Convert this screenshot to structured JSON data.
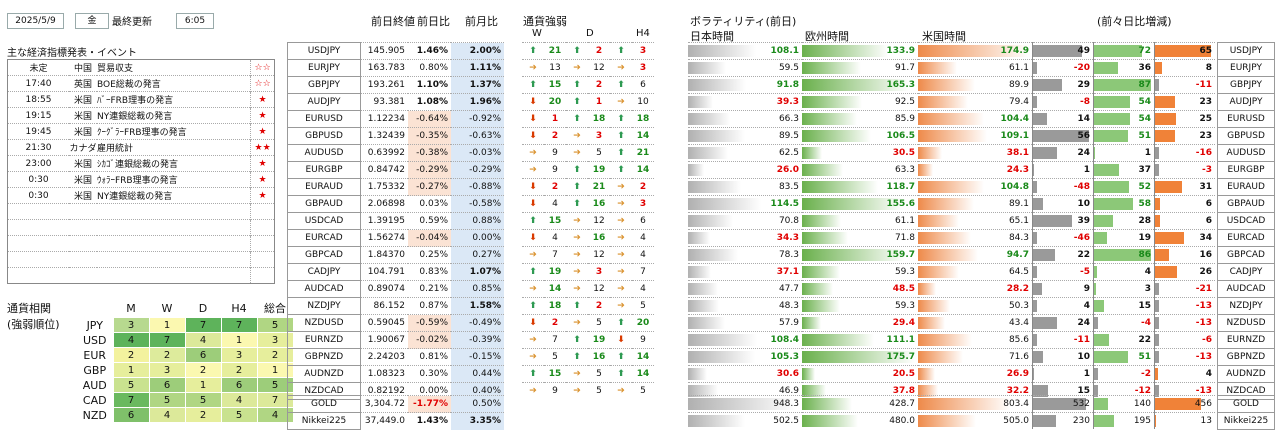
{
  "header": {
    "date": "2025/5/9",
    "weekday": "金",
    "updated_label": "最終更新",
    "time": "6:05"
  },
  "events_title": "主な経済指標発表・イベント",
  "events": [
    {
      "time": "未定",
      "country": "中国",
      "event": "貿易収支",
      "stars": "☆☆"
    },
    {
      "time": "17:40",
      "country": "英国",
      "event": "BOE総裁の発言",
      "stars": "☆☆"
    },
    {
      "time": "18:55",
      "country": "米国",
      "event": "ﾊﾞｰFRB理事の発言",
      "stars": "★"
    },
    {
      "time": "19:15",
      "country": "米国",
      "event": "NY連銀総裁の発言",
      "stars": "★"
    },
    {
      "time": "19:45",
      "country": "米国",
      "event": "ｸｰｸﾞﾗｰFRB理事の発言",
      "stars": "★"
    },
    {
      "time": "21:30",
      "country": "カナダ",
      "event": "雇用統計",
      "stars": "★★"
    },
    {
      "time": "23:00",
      "country": "米国",
      "event": "ｼｶｺﾞ連銀総裁の発言",
      "stars": "★"
    },
    {
      "time": "0:30",
      "country": "米国",
      "event": "ｳｫﾗｰFRB理事の発言",
      "stars": "★"
    },
    {
      "time": "0:30",
      "country": "米国",
      "event": "NY連銀総裁の発言",
      "stars": "★"
    },
    {
      "time": "",
      "country": "",
      "event": "",
      "stars": ""
    },
    {
      "time": "",
      "country": "",
      "event": "",
      "stars": ""
    },
    {
      "time": "",
      "country": "",
      "event": "",
      "stars": ""
    },
    {
      "time": "",
      "country": "",
      "event": "",
      "stars": ""
    },
    {
      "time": "",
      "country": "",
      "event": "",
      "stars": ""
    }
  ],
  "corr_title1": "通貨相関",
  "corr_title2": "(強弱順位)",
  "corr_headers": [
    "M",
    "W",
    "D",
    "H4",
    "総合"
  ],
  "corr_rows": [
    {
      "pair": "JPY",
      "vals": [
        "3",
        "1",
        "7",
        "7",
        "5"
      ]
    },
    {
      "pair": "USD",
      "vals": [
        "4",
        "7",
        "4",
        "1",
        "3"
      ]
    },
    {
      "pair": "EUR",
      "vals": [
        "2",
        "2",
        "6",
        "3",
        "2"
      ]
    },
    {
      "pair": "GBP",
      "vals": [
        "1",
        "3",
        "2",
        "2",
        "1"
      ]
    },
    {
      "pair": "AUD",
      "vals": [
        "5",
        "6",
        "1",
        "6",
        "5"
      ]
    },
    {
      "pair": "CAD",
      "vals": [
        "7",
        "5",
        "5",
        "4",
        "7"
      ]
    },
    {
      "pair": "NZD",
      "vals": [
        "6",
        "4",
        "2",
        "5",
        "4"
      ]
    }
  ],
  "col_headers": {
    "prev_close": "前日終値",
    "day_change": "前日比",
    "month_change": "前月比",
    "strength": "通貨強弱",
    "w": "W",
    "d": "D",
    "h4": "H4",
    "volatility": "ボラティリティ(前日)",
    "japan": "日本時間",
    "europe": "欧州時間",
    "us": "米国時間",
    "change_vs": "(前々日比増減)"
  },
  "rows": [
    {
      "pair": "USDJPY",
      "close": "145.905",
      "day": "1.46%",
      "month": "2.00%",
      "w": [
        "U",
        "21"
      ],
      "d": [
        "U",
        "2"
      ],
      "h4": [
        "U",
        "3"
      ],
      "vj": "108.1",
      "ve": "133.9",
      "vu": "174.9",
      "dj": "49",
      "de": "72",
      "du": "65"
    },
    {
      "pair": "EURJPY",
      "close": "163.783",
      "day": "0.80%",
      "month": "1.11%",
      "w": [
        "N",
        "13"
      ],
      "d": [
        "N",
        "12"
      ],
      "h4": [
        "N",
        "3"
      ],
      "vj": "59.5",
      "ve": "91.7",
      "vu": "61.1",
      "dj": "-20",
      "de": "36",
      "du": "8"
    },
    {
      "pair": "GBPJPY",
      "close": "193.261",
      "day": "1.10%",
      "month": "1.37%",
      "w": [
        "U",
        "15"
      ],
      "d": [
        "U",
        "2"
      ],
      "h4": [
        "U",
        "6"
      ],
      "vj": "91.8",
      "ve": "165.3",
      "vu": "89.9",
      "dj": "29",
      "de": "87",
      "du": "-11"
    },
    {
      "pair": "AUDJPY",
      "close": "93.381",
      "day": "1.08%",
      "month": "1.96%",
      "w": [
        "D",
        "20"
      ],
      "d": [
        "U",
        "1"
      ],
      "h4": [
        "N",
        "10"
      ],
      "vj": "39.3",
      "ve": "92.5",
      "vu": "79.4",
      "dj": "-8",
      "de": "54",
      "du": "23"
    },
    {
      "pair": "EURUSD",
      "close": "1.12234",
      "day": "-0.64%",
      "month": "-0.92%",
      "w": [
        "D",
        "1"
      ],
      "d": [
        "U",
        "18"
      ],
      "h4": [
        "U",
        "18"
      ],
      "vj": "66.3",
      "ve": "85.9",
      "vu": "104.4",
      "dj": "14",
      "de": "54",
      "du": "25"
    },
    {
      "pair": "GBPUSD",
      "close": "1.32439",
      "day": "-0.35%",
      "month": "-0.63%",
      "w": [
        "D",
        "2"
      ],
      "d": [
        "N",
        "3"
      ],
      "h4": [
        "U",
        "14"
      ],
      "vj": "89.5",
      "ve": "106.5",
      "vu": "109.1",
      "dj": "56",
      "de": "51",
      "du": "23"
    },
    {
      "pair": "AUDUSD",
      "close": "0.63992",
      "day": "-0.38%",
      "month": "-0.03%",
      "w": [
        "N",
        "9"
      ],
      "d": [
        "N",
        "5"
      ],
      "h4": [
        "U",
        "21"
      ],
      "vj": "62.5",
      "ve": "30.5",
      "vu": "38.1",
      "dj": "24",
      "de": "1",
      "du": "-16"
    },
    {
      "pair": "EURGBP",
      "close": "0.84742",
      "day": "-0.29%",
      "month": "-0.29%",
      "w": [
        "N",
        "9"
      ],
      "d": [
        "U",
        "19"
      ],
      "h4": [
        "U",
        "14"
      ],
      "vj": "26.0",
      "ve": "63.3",
      "vu": "24.3",
      "dj": "1",
      "de": "37",
      "du": "-3"
    },
    {
      "pair": "EURAUD",
      "close": "1.75332",
      "day": "-0.27%",
      "month": "-0.88%",
      "w": [
        "D",
        "2"
      ],
      "d": [
        "U",
        "21"
      ],
      "h4": [
        "N",
        "2"
      ],
      "vj": "83.5",
      "ve": "118.7",
      "vu": "104.8",
      "dj": "-48",
      "de": "52",
      "du": "31"
    },
    {
      "pair": "GBPAUD",
      "close": "2.06898",
      "day": "0.03%",
      "month": "-0.58%",
      "w": [
        "D",
        "4"
      ],
      "d": [
        "U",
        "16"
      ],
      "h4": [
        "N",
        "3"
      ],
      "vj": "114.5",
      "ve": "155.6",
      "vu": "89.1",
      "dj": "10",
      "de": "58",
      "du": "6"
    },
    {
      "pair": "USDCAD",
      "close": "1.39195",
      "day": "0.59%",
      "month": "0.88%",
      "w": [
        "U",
        "15"
      ],
      "d": [
        "N",
        "12"
      ],
      "h4": [
        "N",
        "6"
      ],
      "vj": "70.8",
      "ve": "61.1",
      "vu": "65.1",
      "dj": "39",
      "de": "28",
      "du": "6"
    },
    {
      "pair": "EURCAD",
      "close": "1.56274",
      "day": "-0.04%",
      "month": "0.00%",
      "w": [
        "D",
        "4"
      ],
      "d": [
        "N",
        "16"
      ],
      "h4": [
        "N",
        "4"
      ],
      "vj": "34.3",
      "ve": "71.8",
      "vu": "84.3",
      "dj": "-46",
      "de": "19",
      "du": "34"
    },
    {
      "pair": "GBPCAD",
      "close": "1.84370",
      "day": "0.25%",
      "month": "0.27%",
      "w": [
        "N",
        "7"
      ],
      "d": [
        "N",
        "12"
      ],
      "h4": [
        "N",
        "4"
      ],
      "vj": "78.3",
      "ve": "159.7",
      "vu": "94.7",
      "dj": "22",
      "de": "86",
      "du": "16"
    },
    {
      "pair": "CADJPY",
      "close": "104.791",
      "day": "0.83%",
      "month": "1.07%",
      "w": [
        "U",
        "19"
      ],
      "d": [
        "N",
        "3"
      ],
      "h4": [
        "N",
        "7"
      ],
      "vj": "37.1",
      "ve": "59.3",
      "vu": "64.5",
      "dj": "-5",
      "de": "4",
      "du": "26"
    },
    {
      "pair": "AUDCAD",
      "close": "0.89074",
      "day": "0.21%",
      "month": "0.85%",
      "w": [
        "N",
        "14"
      ],
      "d": [
        "N",
        "12"
      ],
      "h4": [
        "N",
        "4"
      ],
      "vj": "47.7",
      "ve": "48.5",
      "vu": "28.2",
      "dj": "9",
      "de": "3",
      "du": "-21"
    },
    {
      "pair": "NZDJPY",
      "close": "86.152",
      "day": "0.87%",
      "month": "1.58%",
      "w": [
        "U",
        "18"
      ],
      "d": [
        "U",
        "2"
      ],
      "h4": [
        "N",
        "5"
      ],
      "vj": "48.3",
      "ve": "59.3",
      "vu": "50.3",
      "dj": "4",
      "de": "15",
      "du": "-13"
    },
    {
      "pair": "NZDUSD",
      "close": "0.59045",
      "day": "-0.59%",
      "month": "-0.49%",
      "w": [
        "D",
        "2"
      ],
      "d": [
        "N",
        "5"
      ],
      "h4": [
        "U",
        "20"
      ],
      "vj": "57.9",
      "ve": "29.4",
      "vu": "43.4",
      "dj": "24",
      "de": "-4",
      "du": "-13"
    },
    {
      "pair": "EURNZD",
      "close": "1.90067",
      "day": "-0.02%",
      "month": "-0.39%",
      "w": [
        "N",
        "7"
      ],
      "d": [
        "U",
        "19"
      ],
      "h4": [
        "D",
        "9"
      ],
      "vj": "108.4",
      "ve": "111.1",
      "vu": "85.6",
      "dj": "-11",
      "de": "22",
      "du": "-6"
    },
    {
      "pair": "GBPNZD",
      "close": "2.24203",
      "day": "0.81%",
      "month": "-0.15%",
      "w": [
        "N",
        "5"
      ],
      "d": [
        "U",
        "16"
      ],
      "h4": [
        "U",
        "14"
      ],
      "vj": "105.3",
      "ve": "175.7",
      "vu": "71.6",
      "dj": "10",
      "de": "51",
      "du": "-13"
    },
    {
      "pair": "AUDNZD",
      "close": "1.08323",
      "day": "0.30%",
      "month": "0.44%",
      "w": [
        "U",
        "15"
      ],
      "d": [
        "N",
        "5"
      ],
      "h4": [
        "U",
        "14"
      ],
      "vj": "30.6",
      "ve": "20.5",
      "vu": "26.9",
      "dj": "1",
      "de": "-2",
      "du": "4"
    },
    {
      "pair": "NZDCAD",
      "close": "0.82192",
      "day": "0.00%",
      "month": "0.40%",
      "w": [
        "N",
        "9"
      ],
      "d": [
        "N",
        "5"
      ],
      "h4": [
        "N",
        "5"
      ],
      "vj": "46.9",
      "ve": "37.8",
      "vu": "32.2",
      "dj": "15",
      "de": "-12",
      "du": "-13"
    }
  ],
  "extra": [
    {
      "pair": "GOLD",
      "close": "3,304.72",
      "day": "-1.77%",
      "month": "0.50%",
      "vj": "948.3",
      "ve": "428.7",
      "vu": "803.4",
      "dj": "532",
      "de": "140",
      "du": "456"
    },
    {
      "pair": "Nikkei225",
      "close": "37,449.0",
      "day": "1.43%",
      "month": "3.35%",
      "vj": "502.5",
      "ve": "480.0",
      "vu": "505.0",
      "dj": "230",
      "de": "195",
      "du": "13"
    }
  ]
}
